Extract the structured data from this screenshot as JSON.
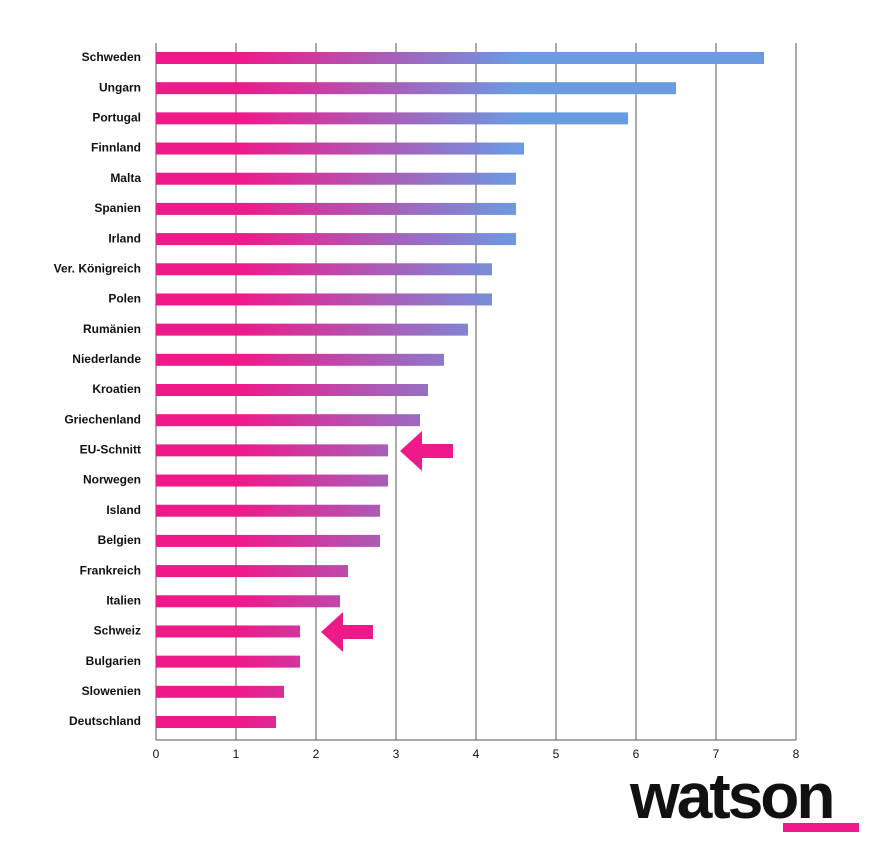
{
  "chart_data": {
    "type": "bar",
    "orientation": "horizontal",
    "categories": [
      "Schweden",
      "Ungarn",
      "Portugal",
      "Finnland",
      "Malta",
      "Spanien",
      "Irland",
      "Ver. Königreich",
      "Polen",
      "Rumänien",
      "Niederlande",
      "Kroatien",
      "Griechenland",
      "EU-Schnitt",
      "Norwegen",
      "Island",
      "Belgien",
      "Frankreich",
      "Italien",
      "Schweiz",
      "Bulgarien",
      "Slowenien",
      "Deutschland"
    ],
    "values": [
      7.6,
      6.5,
      5.9,
      4.6,
      4.5,
      4.5,
      4.5,
      4.2,
      4.2,
      3.9,
      3.6,
      3.4,
      3.3,
      2.9,
      2.9,
      2.8,
      2.8,
      2.4,
      2.3,
      1.8,
      1.8,
      1.6,
      1.5
    ],
    "colors": [
      "#ee1a8a",
      "#6a9be2"
    ],
    "xlim": [
      0,
      8
    ],
    "xticks": [
      0,
      1,
      2,
      3,
      4,
      5,
      6,
      7,
      8
    ],
    "grid": true
  },
  "logo": "watson"
}
